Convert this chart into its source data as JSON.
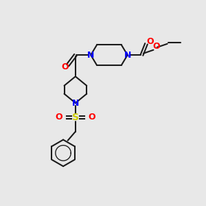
{
  "bg_color": "#e8e8e8",
  "bond_color": "#1a1a1a",
  "n_color": "#0000ff",
  "o_color": "#ff0000",
  "s_color": "#cccc00",
  "lw": 1.5,
  "fig_size": [
    3.0,
    3.0
  ],
  "dpi": 100,
  "xlim": [
    0,
    10
  ],
  "ylim": [
    0,
    10
  ]
}
